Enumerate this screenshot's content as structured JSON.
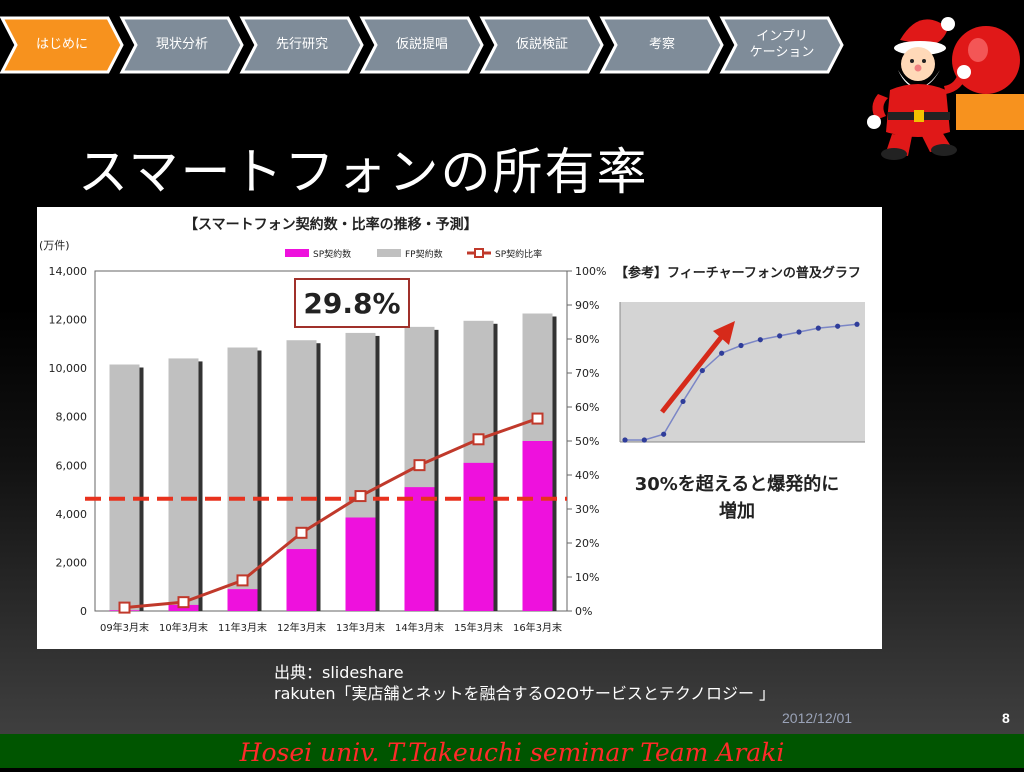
{
  "nav": {
    "steps": [
      {
        "label": "はじめに",
        "active": true
      },
      {
        "label": "現状分析",
        "active": false
      },
      {
        "label": "先行研究",
        "active": false
      },
      {
        "label": "仮説提唱",
        "active": false
      },
      {
        "label": "仮説検証",
        "active": false
      },
      {
        "label": "考察",
        "active": false
      },
      {
        "label": "インプリ\nケーション",
        "active": false
      }
    ],
    "active_color": "#f7921e",
    "inactive_color": "#7f8c99"
  },
  "slide": {
    "title": "スマートフォンの所有率",
    "source_line1": "出典：slideshare",
    "source_line2": "rakuten「実店舗とネットを融合するO2Oサービスとテクノロジー 」",
    "date": "2012/12/01",
    "page_number": "8",
    "footer": "Hosei univ. T.Takeuchi seminar Team Araki"
  },
  "chart_data": [
    {
      "type": "bar",
      "title": "【スマートフォン契約数・比率の推移・予測】",
      "y_unit_label": "(万件)",
      "categories": [
        "09年3月末",
        "10年3月末",
        "11年3月末",
        "12年3月末",
        "13年3月末",
        "14年3月末",
        "15年3月末",
        "16年3月末"
      ],
      "ylim": [
        0,
        14000
      ],
      "y_ticks": [
        "0",
        "2,000",
        "4,000",
        "6,000",
        "8,000",
        "10,000",
        "12,000",
        "14,000"
      ],
      "y2lim": [
        0,
        100
      ],
      "y2_ticks": [
        "0%",
        "10%",
        "20%",
        "30%",
        "40%",
        "50%",
        "60%",
        "70%",
        "80%",
        "90%",
        "100%"
      ],
      "series": [
        {
          "name": "SP契約数",
          "kind": "bar",
          "color": "#ee11dd",
          "values": [
            30,
            250,
            900,
            2550,
            3850,
            5100,
            6100,
            7000
          ]
        },
        {
          "name": "FP契約数",
          "kind": "bar",
          "color": "#c0c0c0",
          "values": [
            10150,
            10400,
            10850,
            11150,
            11450,
            11700,
            11950,
            12250
          ]
        },
        {
          "name": "SP契約比率",
          "kind": "line",
          "color": "#c0392b",
          "values": [
            1.0,
            2.6,
            9.0,
            23.0,
            33.8,
            42.9,
            50.5,
            56.6
          ]
        }
      ],
      "callout": "29.8%",
      "reference_line_pct": 33,
      "grid": false,
      "legend_position": "top-right"
    },
    {
      "type": "line",
      "title": "【参考】フィーチャーフォンの普及グラフ",
      "x": [
        0,
        1,
        2,
        3,
        4,
        5,
        6,
        7,
        8,
        9,
        10,
        11,
        12
      ],
      "values": [
        0,
        0,
        3,
        20,
        36,
        45,
        49,
        52,
        54,
        56,
        58,
        59,
        60
      ],
      "ylim": [
        0,
        70
      ],
      "annotation": "30%を超えると爆発的に増加",
      "grid": false
    }
  ]
}
